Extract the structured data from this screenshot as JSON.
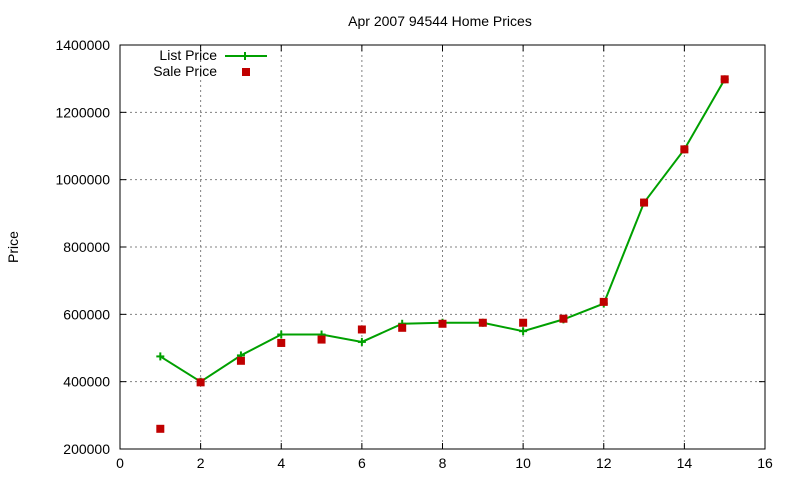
{
  "chart_data": {
    "type": "line",
    "title": "Apr 2007 94544 Home Prices",
    "xlabel": "",
    "ylabel": "Price",
    "xlim": [
      0,
      16
    ],
    "ylim": [
      200000,
      1400000
    ],
    "x_ticks": [
      0,
      2,
      4,
      6,
      8,
      10,
      12,
      14,
      16
    ],
    "y_ticks": [
      200000,
      400000,
      600000,
      800000,
      1000000,
      1200000,
      1400000
    ],
    "grid": true,
    "legend_position": "top-left",
    "series": [
      {
        "name": "List Price",
        "style": "line-with-plus-markers",
        "color": "#00a000",
        "points": [
          [
            1,
            475000
          ],
          [
            2,
            400000
          ],
          [
            3,
            478000
          ],
          [
            4,
            540000
          ],
          [
            5,
            540000
          ],
          [
            6,
            518000
          ],
          [
            7,
            572000
          ],
          [
            8,
            575000
          ],
          [
            9,
            575000
          ],
          [
            10,
            550000
          ],
          [
            11,
            585000
          ],
          [
            12,
            632000
          ],
          [
            13,
            932000
          ],
          [
            14,
            1090000
          ],
          [
            15,
            1298000
          ]
        ]
      },
      {
        "name": "Sale Price",
        "style": "square-markers",
        "color": "#c00000",
        "points": [
          [
            1,
            260000
          ],
          [
            2,
            398000
          ],
          [
            3,
            462000
          ],
          [
            4,
            515000
          ],
          [
            5,
            525000
          ],
          [
            6,
            555000
          ],
          [
            7,
            560000
          ],
          [
            8,
            572000
          ],
          [
            9,
            575000
          ],
          [
            10,
            575000
          ],
          [
            11,
            587000
          ],
          [
            12,
            637000
          ],
          [
            13,
            932000
          ],
          [
            14,
            1090000
          ],
          [
            15,
            1298000
          ]
        ]
      }
    ]
  }
}
